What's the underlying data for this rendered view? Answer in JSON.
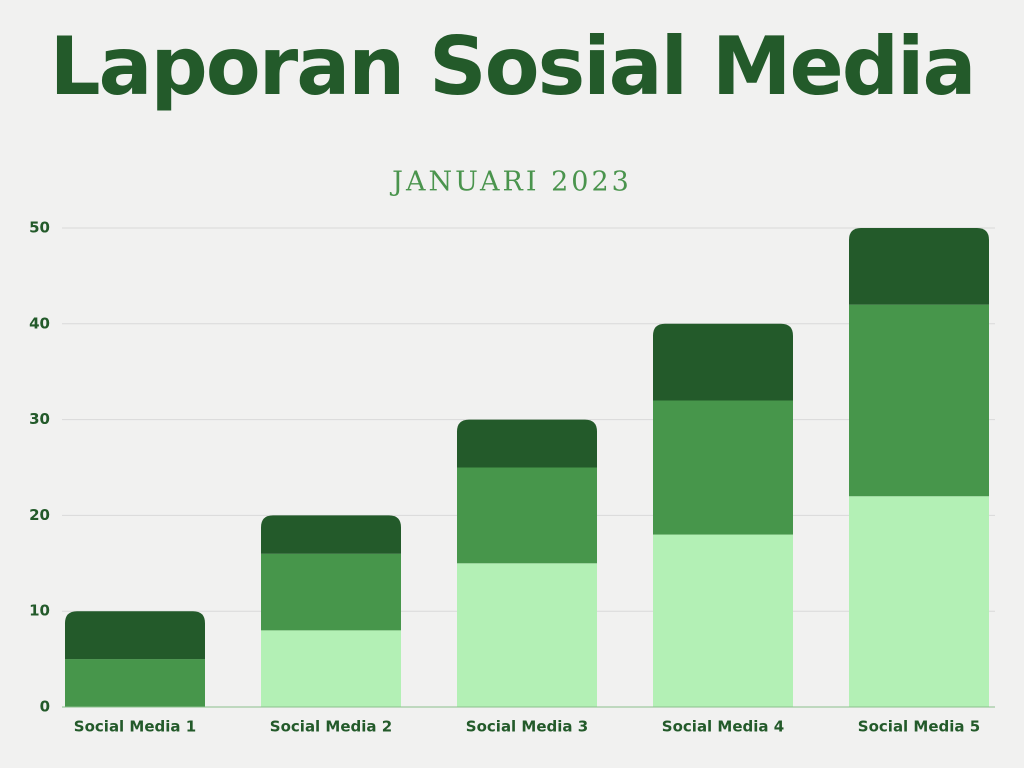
{
  "chart_data": {
    "type": "stacked-bar",
    "title": "Laporan Sosial Media",
    "subtitle": "JANUARI 2023",
    "categories": [
      "Social Media 1",
      "Social Media 2",
      "Social Media 3",
      "Social Media 4",
      "Social Media 5"
    ],
    "series": [
      {
        "color": "#b3f0b5",
        "values": [
          0,
          8,
          15,
          18,
          22
        ]
      },
      {
        "color": "#47964b",
        "values": [
          5,
          8,
          10,
          14,
          20
        ]
      },
      {
        "color": "#235a2a",
        "values": [
          5,
          4,
          5,
          8,
          8
        ]
      }
    ],
    "ylim": [
      0,
      50
    ],
    "yticks": [
      0,
      10,
      20,
      30,
      40,
      50
    ],
    "grid": true
  }
}
